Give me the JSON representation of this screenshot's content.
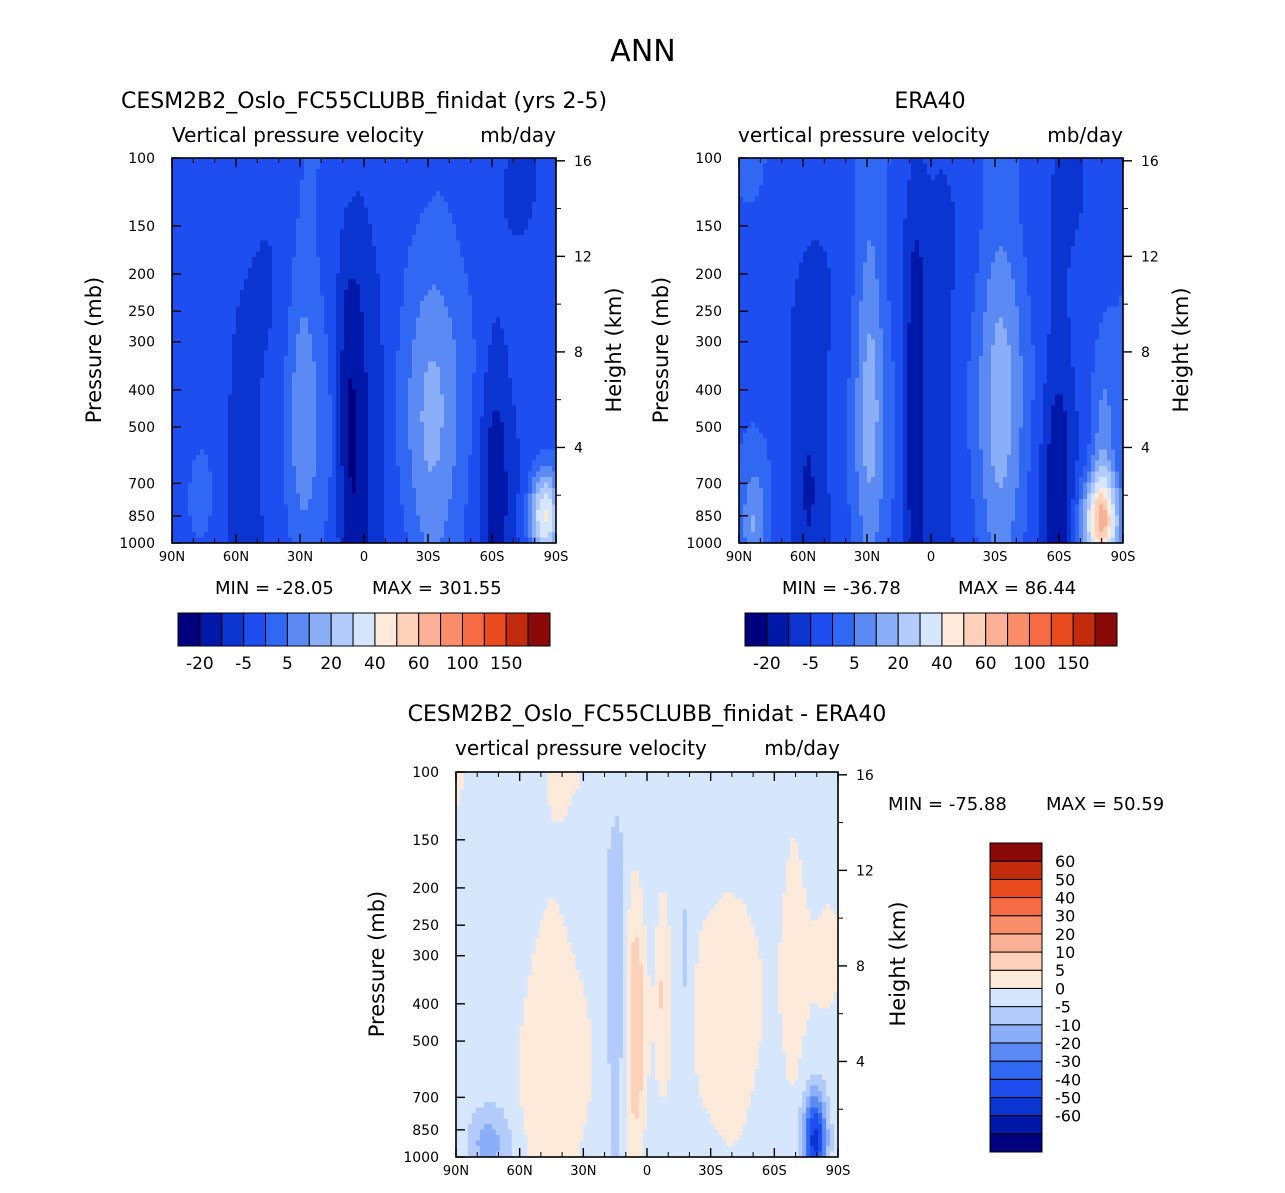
{
  "figure": {
    "title": "ANN"
  },
  "colors": {
    "abs": [
      "#00007f",
      "#0018a8",
      "#0b35d0",
      "#1e4ef0",
      "#3068f3",
      "#5b8af5",
      "#8aaef8",
      "#b3cbfb",
      "#d6e6fd",
      "#feeadb",
      "#fdd0b9",
      "#fcb196",
      "#fa8e6a",
      "#f66b44",
      "#e94a1e",
      "#c22c0c",
      "#8a0a0a"
    ],
    "diff": [
      "#00007f",
      "#0018a8",
      "#0b35d0",
      "#1e4ef0",
      "#3068f3",
      "#5b8af5",
      "#8aaef8",
      "#b3cbfb",
      "#d6e6fd",
      "#feeadb",
      "#fdd0b9",
      "#fcb196",
      "#fa8e6a",
      "#f66b44",
      "#e94a1e",
      "#c22c0c",
      "#8a0a0a"
    ]
  },
  "chart_data": [
    {
      "id": "model",
      "type": "heatmap",
      "title": "CESM2B2_Oslo_FC55CLUBB_finidat (yrs 2-5)",
      "subtitle_left": "Vertical pressure velocity",
      "subtitle_right": "mb/day",
      "ylabel": "Pressure (mb)",
      "ylabel_right": "Height (km)",
      "x_ticks": [
        "90N",
        "60N",
        "30N",
        "0",
        "30S",
        "60S",
        "90S"
      ],
      "y_ticks": [
        "100",
        "150",
        "200",
        "250",
        "300",
        "400",
        "500",
        "700",
        "850",
        "1000"
      ],
      "y_values": [
        100,
        150,
        200,
        250,
        300,
        400,
        500,
        700,
        850,
        1000
      ],
      "height_ticks": [
        "16",
        "12",
        "8",
        "4"
      ],
      "height_values": [
        16,
        12,
        8,
        4
      ],
      "min_label": "MIN = -28.05",
      "max_label": "MAX = 301.55",
      "colorbar_labels": [
        "-20",
        "-5",
        "5",
        "20",
        "40",
        "60",
        "100",
        "150"
      ],
      "base_level": 3,
      "features": [
        {
          "x": 0.48,
          "p": 550,
          "w": 0.035,
          "h": 0.5,
          "d": -2.5
        },
        {
          "x": 0.45,
          "p": 450,
          "w": 0.025,
          "h": 0.4,
          "d": -1.5
        },
        {
          "x": 0.53,
          "p": 500,
          "w": 0.025,
          "h": 0.35,
          "d": -1.0
        },
        {
          "x": 0.34,
          "p": 420,
          "w": 0.045,
          "h": 0.45,
          "d": 2.0
        },
        {
          "x": 0.67,
          "p": 500,
          "w": 0.075,
          "h": 0.5,
          "d": 2.5
        },
        {
          "x": 0.84,
          "p": 650,
          "w": 0.04,
          "h": 0.35,
          "d": -2.0
        },
        {
          "x": 0.18,
          "p": 680,
          "w": 0.045,
          "h": 0.3,
          "d": -1.5
        },
        {
          "x": 0.97,
          "p": 850,
          "w": 0.04,
          "h": 0.12,
          "d": 6.0
        },
        {
          "x": 0.05,
          "p": 180,
          "w": 0.08,
          "h": 0.3,
          "d": -0.5
        },
        {
          "x": 0.58,
          "p": 160,
          "w": 0.06,
          "h": 0.2,
          "d": 0.5
        }
      ]
    },
    {
      "id": "obs",
      "type": "heatmap",
      "title": "ERA40",
      "subtitle_left": "vertical pressure velocity",
      "subtitle_right": "mb/day",
      "ylabel": "Pressure (mb)",
      "ylabel_right": "Height (km)",
      "x_ticks": [
        "90N",
        "60N",
        "30N",
        "0",
        "30S",
        "60S",
        "90S"
      ],
      "y_ticks": [
        "100",
        "150",
        "200",
        "250",
        "300",
        "400",
        "500",
        "700",
        "850",
        "1000"
      ],
      "y_values": [
        100,
        150,
        200,
        250,
        300,
        400,
        500,
        700,
        850,
        1000
      ],
      "height_ticks": [
        "16",
        "12",
        "8",
        "4"
      ],
      "height_values": [
        16,
        12,
        8,
        4
      ],
      "min_label": "MIN = -36.78",
      "max_label": "MAX = 86.44",
      "colorbar_labels": [
        "-20",
        "-5",
        "5",
        "20",
        "40",
        "60",
        "100",
        "150"
      ],
      "base_level": 3,
      "features": [
        {
          "x": 0.46,
          "p": 500,
          "w": 0.03,
          "h": 0.55,
          "d": -2.5
        },
        {
          "x": 0.34,
          "p": 400,
          "w": 0.04,
          "h": 0.5,
          "d": 2.5
        },
        {
          "x": 0.68,
          "p": 450,
          "w": 0.06,
          "h": 0.55,
          "d": 2.5
        },
        {
          "x": 0.83,
          "p": 650,
          "w": 0.04,
          "h": 0.35,
          "d": -2.0
        },
        {
          "x": 0.18,
          "p": 700,
          "w": 0.05,
          "h": 0.3,
          "d": -1.5
        },
        {
          "x": 0.94,
          "p": 880,
          "w": 0.05,
          "h": 0.12,
          "d": 7.0
        },
        {
          "x": 0.95,
          "p": 600,
          "w": 0.03,
          "h": 0.25,
          "d": 2.0
        },
        {
          "x": 0.04,
          "p": 900,
          "w": 0.03,
          "h": 0.15,
          "d": 2.0
        },
        {
          "x": 0.53,
          "p": 450,
          "w": 0.02,
          "h": 0.4,
          "d": -1.0
        }
      ]
    },
    {
      "id": "diff",
      "type": "heatmap",
      "title": "CESM2B2_Oslo_FC55CLUBB_finidat - ERA40",
      "subtitle_left": "vertical pressure velocity",
      "subtitle_right": "mb/day",
      "ylabel": "Pressure (mb)",
      "ylabel_right": "Height (km)",
      "x_ticks": [
        "90N",
        "60N",
        "30N",
        "0",
        "30S",
        "60S",
        "90S"
      ],
      "y_ticks": [
        "100",
        "150",
        "200",
        "250",
        "300",
        "400",
        "500",
        "700",
        "850",
        "1000"
      ],
      "y_values": [
        100,
        150,
        200,
        250,
        300,
        400,
        500,
        700,
        850,
        1000
      ],
      "height_ticks": [
        "16",
        "12",
        "8",
        "4"
      ],
      "height_values": [
        16,
        12,
        8,
        4
      ],
      "min_label": "MIN = -75.88",
      "max_label": "MAX = 50.59",
      "colorbar_labels": [
        "60",
        "50",
        "40",
        "30",
        "20",
        "10",
        "5",
        "0",
        "-5",
        "-10",
        "-20",
        "-30",
        "-40",
        "-50",
        "-60"
      ],
      "base_level": 8,
      "features": [
        {
          "x": 0.47,
          "p": 450,
          "w": 0.03,
          "h": 0.45,
          "d": 2.5
        },
        {
          "x": 0.42,
          "p": 400,
          "w": 0.025,
          "h": 0.35,
          "d": -1.5
        },
        {
          "x": 0.54,
          "p": 350,
          "w": 0.02,
          "h": 0.3,
          "d": 1.5
        },
        {
          "x": 0.6,
          "p": 350,
          "w": 0.02,
          "h": 0.3,
          "d": -1.0
        },
        {
          "x": 0.22,
          "p": 500,
          "w": 0.08,
          "h": 0.6,
          "d": 1.0
        },
        {
          "x": 0.75,
          "p": 500,
          "w": 0.08,
          "h": 0.6,
          "d": 1.0
        },
        {
          "x": 0.94,
          "p": 900,
          "w": 0.03,
          "h": 0.12,
          "d": -6.0
        },
        {
          "x": 0.08,
          "p": 920,
          "w": 0.06,
          "h": 0.1,
          "d": -2.0
        },
        {
          "x": 0.88,
          "p": 300,
          "w": 0.03,
          "h": 0.5,
          "d": 1.0
        }
      ]
    }
  ]
}
